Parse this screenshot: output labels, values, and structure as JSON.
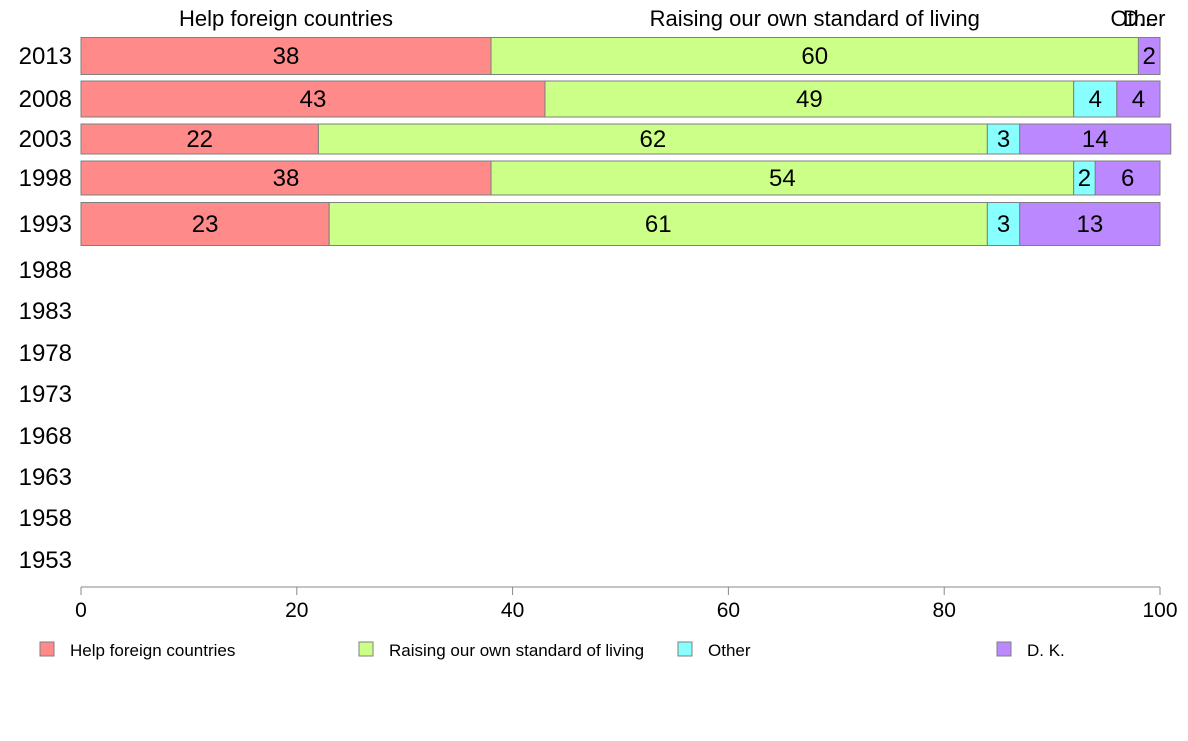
{
  "chart_data": {
    "type": "bar",
    "orientation": "horizontal",
    "stacked": true,
    "categories": [
      "2013",
      "2008",
      "2003",
      "1998",
      "1993",
      "1988",
      "1983",
      "1978",
      "1973",
      "1968",
      "1963",
      "1958",
      "1953"
    ],
    "series": [
      {
        "name": "Help foreign countries",
        "color": "#ff8a8a",
        "values": [
          38,
          43,
          22,
          38,
          23,
          null,
          null,
          null,
          null,
          null,
          null,
          null,
          null
        ]
      },
      {
        "name": "Raising our own standard of living",
        "color": "#ccff88",
        "values": [
          60,
          49,
          62,
          54,
          61,
          null,
          null,
          null,
          null,
          null,
          null,
          null,
          null
        ]
      },
      {
        "name": "Other",
        "color": "#88ffff",
        "values": [
          0,
          4,
          3,
          2,
          3,
          null,
          null,
          null,
          null,
          null,
          null,
          null,
          null
        ]
      },
      {
        "name": "D. K.",
        "color": "#bb88ff",
        "values": [
          2,
          4,
          14,
          6,
          13,
          null,
          null,
          null,
          null,
          null,
          null,
          null,
          null
        ]
      }
    ],
    "xlim": [
      0,
      100
    ],
    "x_ticks": [
      "0",
      "20",
      "40",
      "60",
      "80",
      "100"
    ],
    "top_labels": [
      "Help foreign countries",
      "Raising our own standard of living",
      "Other",
      "D..."
    ],
    "legend_position": "bottom",
    "grid": false
  }
}
